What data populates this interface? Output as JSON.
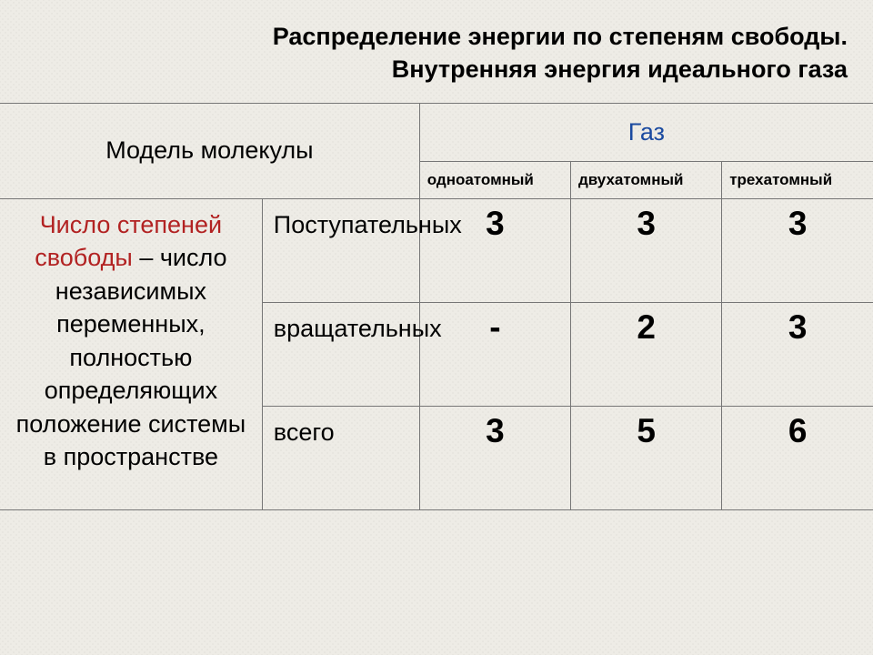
{
  "title_line1": "Распределение энергии по степеням свободы.",
  "title_line2": "Внутренняя энергия идеального газа",
  "title_fontsize": 27,
  "title_color": "#000000",
  "header": {
    "model": "Модель молекулы",
    "gas": "Газ",
    "model_color": "#000000",
    "gas_color": "#1a4aa0",
    "header_fontsize": 27
  },
  "subheaders": {
    "col1": "одноатомный",
    "col2": "двухатомный",
    "col3": "трехатомный",
    "sub_fontsize": 17
  },
  "definition": {
    "highlight": "Число степеней свободы",
    "rest": " – число независимых переменных, полностью определяющих положение системы в пространстве",
    "highlight_color": "#b22222",
    "rest_color": "#000000",
    "def_fontsize": 27
  },
  "rows": {
    "kind_fontsize": 27,
    "num_fontsize": 37,
    "r1": {
      "kind": "Поступательных",
      "v1": "3",
      "v2": "3",
      "v3": "3"
    },
    "r2": {
      "kind": "вращательных",
      "v1": "-",
      "v2": "2",
      "v3": "3"
    },
    "r3": {
      "kind": "всего",
      "v1": "3",
      "v2": "5",
      "v3": "6"
    }
  },
  "table": {
    "col_widths_pct": [
      30,
      18,
      17.3,
      17.3,
      17.3
    ],
    "background_color": "#eeece6",
    "border_color": "#767676"
  }
}
